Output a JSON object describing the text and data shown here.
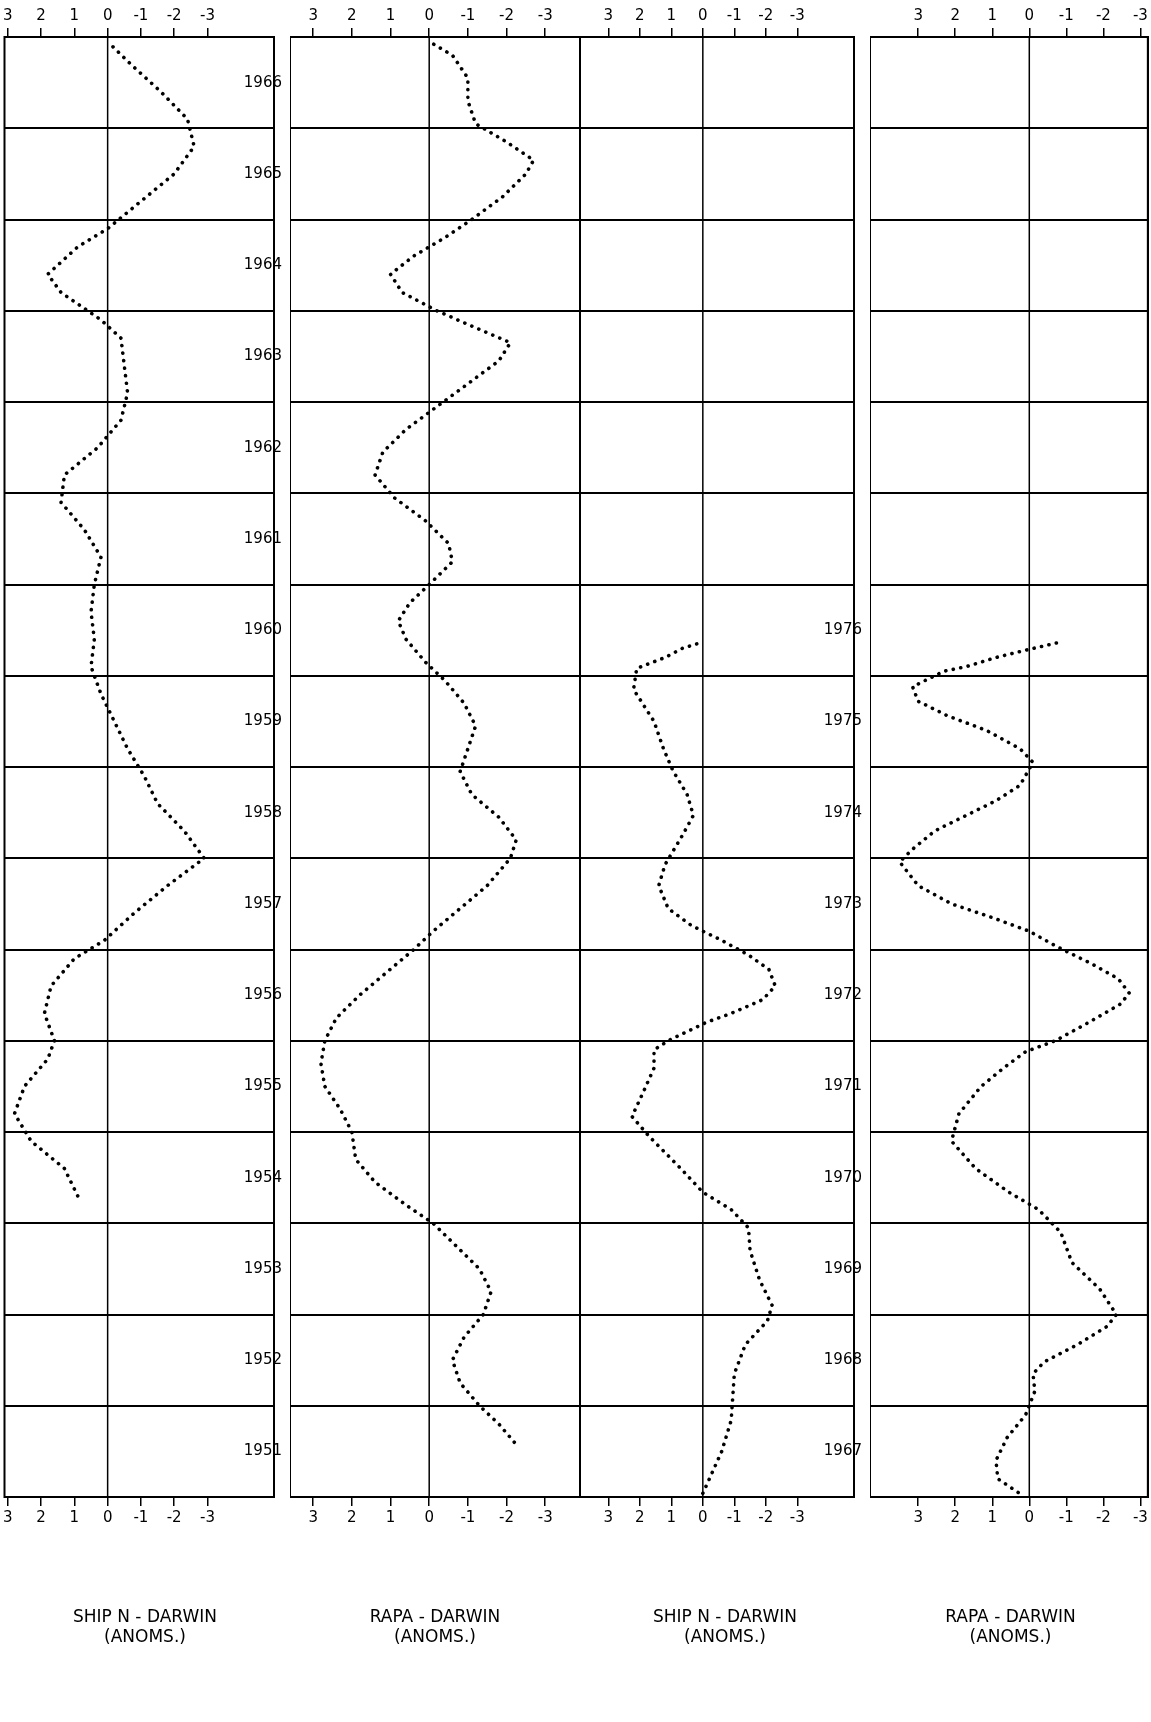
{
  "chart_data": [
    {
      "type": "line",
      "orientation": "horizontal",
      "xlabel": "SHIP N - DARWIN\n(ANOMS.)",
      "color": "#000000",
      "line_style": "dotted",
      "marker": "none",
      "grid": "y",
      "x": [
        1954.3,
        1954.6,
        1954.9,
        1955.2,
        1955.5,
        1955.8,
        1956.0,
        1956.3,
        1956.6,
        1956.9,
        1957.1,
        1957.4,
        1957.7,
        1958.0,
        1958.3,
        1958.6,
        1958.9,
        1959.2,
        1959.5,
        1959.8,
        1960.1,
        1960.4,
        1960.7,
        1961.0,
        1961.3,
        1961.6,
        1961.9,
        1962.2,
        1962.5,
        1962.8,
        1963.1,
        1963.4,
        1963.7,
        1963.9,
        1964.2,
        1964.4,
        1964.7,
        1964.9,
        1965.2,
        1965.5,
        1965.8,
        1966.1,
        1966.4,
        1966.7,
        1966.95
      ],
      "values": [
        0.9,
        1.3,
        2.3,
        2.8,
        2.5,
        1.8,
        1.6,
        1.9,
        1.7,
        1.0,
        0.1,
        -0.8,
        -1.8,
        -2.9,
        -2.3,
        -1.5,
        -1.1,
        -0.6,
        -0.2,
        0.2,
        0.5,
        0.4,
        0.5,
        0.4,
        0.2,
        0.7,
        1.4,
        1.3,
        0.3,
        -0.4,
        -0.6,
        -0.5,
        -0.4,
        0.2,
        1.4,
        1.8,
        0.9,
        0,
        -1.0,
        -2.0,
        -2.6,
        -2.4,
        -1.6,
        -0.7,
        0
      ],
      "ylim": [
        1951,
        1967
      ],
      "yticks": [
        {
          "value": 1951,
          "label": null
        },
        {
          "value": 1952,
          "label": null
        },
        {
          "value": 1953,
          "label": null
        },
        {
          "value": 1954,
          "label": null
        },
        {
          "value": 1955,
          "label": null
        },
        {
          "value": 1956,
          "label": null
        },
        {
          "value": 1957,
          "label": null
        },
        {
          "value": 1958,
          "label": null
        },
        {
          "value": 1959,
          "label": null
        },
        {
          "value": 1960,
          "label": null
        },
        {
          "value": 1961,
          "label": null
        },
        {
          "value": 1962,
          "label": null
        },
        {
          "value": 1963,
          "label": null
        },
        {
          "value": 1964,
          "label": null
        },
        {
          "value": 1965,
          "label": null
        },
        {
          "value": 1966,
          "label": null
        },
        {
          "value": 1967,
          "label": null
        },
        {
          "value": 1951.5,
          "label": "1951"
        },
        {
          "value": 1952.5,
          "label": "1952"
        },
        {
          "value": 1953.5,
          "label": "1953"
        },
        {
          "value": 1954.5,
          "label": "1954"
        },
        {
          "value": 1955.5,
          "label": "1955"
        },
        {
          "value": 1956.5,
          "label": "1956"
        },
        {
          "value": 1957.5,
          "label": "1957"
        },
        {
          "value": 1958.5,
          "label": "1958"
        },
        {
          "value": 1959.5,
          "label": "1959"
        },
        {
          "value": 1960.5,
          "label": "1960"
        },
        {
          "value": 1961.5,
          "label": "1961"
        },
        {
          "value": 1962.5,
          "label": "1962"
        },
        {
          "value": 1963.5,
          "label": "1963"
        },
        {
          "value": 1964.5,
          "label": "1964"
        },
        {
          "value": 1965.5,
          "label": "1965"
        },
        {
          "value": 1966.5,
          "label": "1966"
        }
      ],
      "xlim": [
        3.1,
        -5.0
      ],
      "xticks": [
        3,
        2,
        1,
        0,
        -1,
        -2,
        -3
      ],
      "x2lim": [
        3.1,
        -5.0
      ],
      "x2ticks": [
        3,
        2,
        1,
        0,
        -1,
        -2,
        -3
      ],
      "ref_lines": [
        {
          "axis": "x",
          "value": 0
        }
      ]
    },
    {
      "type": "line",
      "orientation": "horizontal",
      "xlabel": "RAPA - DARWIN\n(ANOMS.)",
      "color": "#000000",
      "line_style": "dotted",
      "marker": "none",
      "grid": "y",
      "tick_labels": "x",
      "x": [
        1951.6,
        1951.8,
        1952.0,
        1952.25,
        1952.5,
        1952.75,
        1953.0,
        1953.25,
        1953.5,
        1953.75,
        1954.0,
        1954.2,
        1954.45,
        1954.7,
        1955.0,
        1955.25,
        1955.5,
        1955.75,
        1956.0,
        1956.25,
        1956.5,
        1956.75,
        1957.0,
        1957.2,
        1957.45,
        1957.7,
        1958.0,
        1958.2,
        1958.45,
        1958.7,
        1958.95,
        1959.2,
        1959.45,
        1959.7,
        1959.95,
        1960.15,
        1960.4,
        1960.6,
        1960.8,
        1961.0,
        1961.25,
        1961.45,
        1961.7,
        1961.95,
        1962.2,
        1962.45,
        1962.7,
        1962.95,
        1963.2,
        1963.45,
        1963.65,
        1963.85,
        1964.0,
        1964.2,
        1964.4,
        1964.6,
        1964.8,
        1965.0,
        1965.25,
        1965.5,
        1965.65,
        1965.85,
        1966.05,
        1966.3,
        1966.55,
        1966.8,
        1966.95
      ],
      "values": [
        -2.2,
        -1.8,
        -1.3,
        -0.8,
        -0.6,
        -0.9,
        -1.4,
        -1.6,
        -1.3,
        -0.7,
        -0.1,
        0.6,
        1.4,
        1.9,
        2.0,
        2.3,
        2.7,
        2.8,
        2.7,
        2.4,
        1.8,
        1.1,
        0.4,
        -0.1,
        -0.8,
        -1.5,
        -2.1,
        -2.25,
        -1.8,
        -1.1,
        -0.8,
        -1.0,
        -1.2,
        -0.9,
        -0.4,
        0.1,
        0.6,
        0.8,
        0.5,
        0,
        -0.6,
        -0.5,
        0.1,
        0.9,
        1.4,
        1.2,
        0.6,
        -0.2,
        -1.0,
        -1.8,
        -2.1,
        -1.0,
        -0.2,
        0.7,
        1.0,
        0.4,
        -0.4,
        -1.1,
        -1.9,
        -2.5,
        -2.7,
        -2.0,
        -1.2,
        -1.0,
        -1.0,
        -0.6,
        0
      ],
      "ylim": [
        1951,
        1967
      ],
      "yticks": [
        {
          "value": 1951,
          "label": null
        },
        {
          "value": 1952,
          "label": null
        },
        {
          "value": 1953,
          "label": null
        },
        {
          "value": 1954,
          "label": null
        },
        {
          "value": 1955,
          "label": null
        },
        {
          "value": 1956,
          "label": null
        },
        {
          "value": 1957,
          "label": null
        },
        {
          "value": 1958,
          "label": null
        },
        {
          "value": 1959,
          "label": null
        },
        {
          "value": 1960,
          "label": null
        },
        {
          "value": 1961,
          "label": null
        },
        {
          "value": 1962,
          "label": null
        },
        {
          "value": 1963,
          "label": null
        },
        {
          "value": 1964,
          "label": null
        },
        {
          "value": 1965,
          "label": null
        },
        {
          "value": 1966,
          "label": null
        },
        {
          "value": 1967,
          "label": null
        }
      ],
      "xlim": [
        3.6,
        -3.9
      ],
      "xticks": [
        3,
        2,
        1,
        0,
        -1,
        -2,
        -3
      ],
      "x2lim": [
        3.6,
        -3.9
      ],
      "x2ticks": [
        3,
        2,
        1,
        0,
        -1,
        -2,
        -3
      ],
      "ref_lines": [
        {
          "axis": "x",
          "value": 0
        }
      ]
    },
    {
      "type": "line",
      "orientation": "horizontal",
      "xlabel": "SHIP N - DARWIN\n(ANOMS.)",
      "color": "#000000",
      "line_style": "dotted",
      "marker": "none",
      "grid": "y",
      "x": [
        1967.04,
        1967.5,
        1967.84,
        1968.35,
        1968.67,
        1968.93,
        1969.1,
        1969.38,
        1969.7,
        1969.95,
        1970.15,
        1970.34,
        1970.6,
        1970.95,
        1971.17,
        1971.43,
        1971.7,
        1971.9,
        1972.0,
        1972.1,
        1972.2,
        1972.3,
        1972.45,
        1972.6,
        1972.78,
        1972.94,
        1973.1,
        1973.26,
        1973.45,
        1973.7,
        1973.93,
        1974.25,
        1974.47,
        1974.7,
        1974.96,
        1975.2,
        1975.5,
        1975.85,
        1976.08,
        1976.2,
        1976.3,
        1976.37
      ],
      "values": [
        0,
        -0.6,
        -0.9,
        -1.0,
        -1.35,
        -2.05,
        -2.2,
        -1.8,
        -1.5,
        -1.45,
        -0.9,
        0,
        0.7,
        1.7,
        2.25,
        1.9,
        1.55,
        1.55,
        1.1,
        0.5,
        -0.1,
        -0.9,
        -1.9,
        -2.3,
        -2.1,
        -1.45,
        -0.6,
        0.35,
        1.1,
        1.4,
        1.2,
        0.65,
        0.3,
        0.5,
        0.95,
        1.25,
        1.55,
        2.2,
        2.1,
        1.2,
        0.65,
        0
      ],
      "ylim": [
        1967,
        1983
      ],
      "yticks": [
        {
          "value": 1967,
          "label": null
        },
        {
          "value": 1968,
          "label": null
        },
        {
          "value": 1969,
          "label": null
        },
        {
          "value": 1970,
          "label": null
        },
        {
          "value": 1971,
          "label": null
        },
        {
          "value": 1972,
          "label": null
        },
        {
          "value": 1973,
          "label": null
        },
        {
          "value": 1974,
          "label": null
        },
        {
          "value": 1975,
          "label": null
        },
        {
          "value": 1976,
          "label": null
        },
        {
          "value": 1977,
          "label": null
        },
        {
          "value": 1978,
          "label": null
        },
        {
          "value": 1979,
          "label": null
        },
        {
          "value": 1980,
          "label": null
        },
        {
          "value": 1981,
          "label": null
        },
        {
          "value": 1982,
          "label": null
        },
        {
          "value": 1983,
          "label": null
        },
        {
          "value": 1967.5,
          "label": "1967"
        },
        {
          "value": 1968.5,
          "label": "1968"
        },
        {
          "value": 1969.5,
          "label": "1969"
        },
        {
          "value": 1970.5,
          "label": "1970"
        },
        {
          "value": 1971.5,
          "label": "1971"
        },
        {
          "value": 1972.5,
          "label": "1972"
        },
        {
          "value": 1973.5,
          "label": "1973"
        },
        {
          "value": 1974.5,
          "label": "1974"
        },
        {
          "value": 1975.5,
          "label": "1975"
        },
        {
          "value": 1976.5,
          "label": "1976"
        }
      ],
      "xlim": [
        3.9,
        -4.8
      ],
      "xticks": [
        3,
        2,
        1,
        0,
        -1,
        -2,
        -3
      ],
      "x2lim": [
        3.9,
        -4.8
      ],
      "x2ticks": [
        3,
        2,
        1,
        0,
        -1,
        -2,
        -3
      ],
      "ref_lines": [
        {
          "axis": "x",
          "value": 0
        }
      ]
    },
    {
      "type": "line",
      "orientation": "horizontal",
      "xlabel": "RAPA - DARWIN\n(ANOMS.)",
      "color": "#000000",
      "line_style": "dotted",
      "marker": "none",
      "grid": "y",
      "tick_labels": "x",
      "x": [
        1967.05,
        1967.2,
        1967.4,
        1967.65,
        1967.9,
        1968.16,
        1968.35,
        1968.48,
        1968.67,
        1968.87,
        1969.0,
        1969.28,
        1969.57,
        1969.9,
        1970.15,
        1970.34,
        1970.6,
        1970.9,
        1971.2,
        1971.5,
        1971.7,
        1971.88,
        1972.0,
        1972.2,
        1972.4,
        1972.52,
        1972.68,
        1972.84,
        1973.03,
        1973.2,
        1973.35,
        1973.5,
        1973.7,
        1973.96,
        1974.1,
        1974.3,
        1974.47,
        1974.63,
        1974.8,
        1975.05,
        1975.2,
        1975.4,
        1975.56,
        1975.72,
        1975.88,
        1975.95,
        1976.05,
        1976.1,
        1976.2,
        1976.28,
        1976.37
      ],
      "values": [
        0.3,
        0.85,
        0.9,
        0.6,
        0.1,
        -0.15,
        -0.1,
        -0.4,
        -1.3,
        -2.1,
        -2.35,
        -1.9,
        -1.15,
        -0.85,
        -0.25,
        0.55,
        1.45,
        2.1,
        1.9,
        1.3,
        0.7,
        0.1,
        -0.7,
        -1.6,
        -2.45,
        -2.7,
        -2.4,
        -1.7,
        -0.75,
        0,
        1.0,
        2.1,
        3.0,
        3.5,
        3.15,
        2.55,
        1.7,
        0.9,
        0.25,
        -0.1,
        0.25,
        1.15,
        2.2,
        3.0,
        3.15,
        2.8,
        2.3,
        1.7,
        0.9,
        0.1,
        -0.85
      ],
      "ylim": [
        1967,
        1983
      ],
      "yticks": [
        {
          "value": 1967,
          "label": null
        },
        {
          "value": 1968,
          "label": null
        },
        {
          "value": 1969,
          "label": null
        },
        {
          "value": 1970,
          "label": null
        },
        {
          "value": 1971,
          "label": null
        },
        {
          "value": 1972,
          "label": null
        },
        {
          "value": 1973,
          "label": null
        },
        {
          "value": 1974,
          "label": null
        },
        {
          "value": 1975,
          "label": null
        },
        {
          "value": 1976,
          "label": null
        },
        {
          "value": 1977,
          "label": null
        },
        {
          "value": 1978,
          "label": null
        },
        {
          "value": 1979,
          "label": null
        },
        {
          "value": 1980,
          "label": null
        },
        {
          "value": 1981,
          "label": null
        },
        {
          "value": 1982,
          "label": null
        },
        {
          "value": 1983,
          "label": null
        }
      ],
      "xlim": [
        4.3,
        -3.2
      ],
      "xticks": [
        3,
        2,
        1,
        0,
        -1,
        -2,
        -3
      ],
      "x2lim": [
        4.3,
        -3.2
      ],
      "x2ticks": [
        3,
        2,
        1,
        0,
        -1,
        -2,
        -3
      ],
      "ref_lines": [
        {
          "axis": "x",
          "value": 0
        }
      ]
    }
  ]
}
